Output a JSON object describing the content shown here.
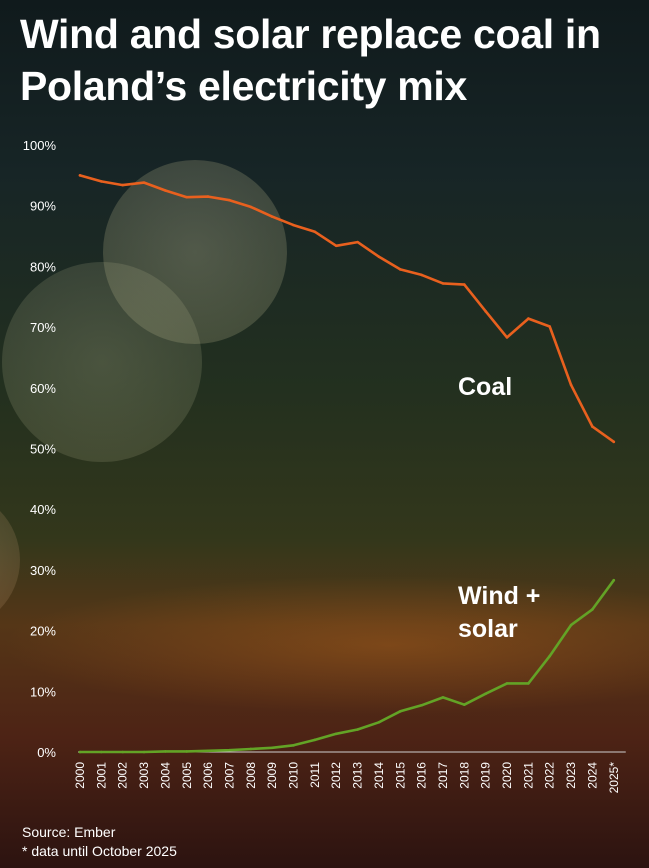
{
  "title": "Wind and solar replace coal in Poland’s electricity mix",
  "footer": {
    "source": "Source: Ember",
    "note": "* data until October 2025"
  },
  "colors": {
    "coal": "#e8601e",
    "wind_solar": "#63a326",
    "axis": "#cfcfcf"
  },
  "chart_data": {
    "type": "line",
    "title": "Wind and solar replace coal in Poland’s electricity mix",
    "xlabel": "",
    "ylabel": "",
    "ylim": [
      0,
      100
    ],
    "grid": false,
    "y_ticks": [
      "0%",
      "10%",
      "20%",
      "30%",
      "40%",
      "50%",
      "60%",
      "70%",
      "80%",
      "90%",
      "100%"
    ],
    "x": [
      "2000",
      "2001",
      "2002",
      "2003",
      "2004",
      "2005",
      "2006",
      "2007",
      "2008",
      "2009",
      "2010",
      "2011",
      "2012",
      "2013",
      "2014",
      "2015",
      "2016",
      "2017",
      "2018",
      "2019",
      "2020",
      "2021",
      "2022",
      "2023",
      "2024",
      "2025*"
    ],
    "series": [
      {
        "name": "Coal",
        "values": [
          95.0,
          94.0,
          93.4,
          93.8,
          92.5,
          91.4,
          91.5,
          90.9,
          89.8,
          88.2,
          86.8,
          85.7,
          83.4,
          84.0,
          81.6,
          79.5,
          78.6,
          77.2,
          77.0,
          72.6,
          68.3,
          71.4,
          70.1,
          60.5,
          53.6,
          51.1
        ]
      },
      {
        "name": "Wind + solar",
        "values": [
          0.0,
          0.0,
          0.0,
          0.0,
          0.1,
          0.1,
          0.2,
          0.3,
          0.5,
          0.7,
          1.1,
          2.0,
          3.0,
          3.7,
          4.9,
          6.7,
          7.7,
          9.0,
          7.8,
          9.6,
          11.3,
          11.3,
          15.8,
          20.9,
          23.5,
          28.3
        ]
      }
    ],
    "labels": {
      "coal": [
        "Coal"
      ],
      "wind_solar": [
        "Wind +",
        "solar"
      ]
    }
  }
}
